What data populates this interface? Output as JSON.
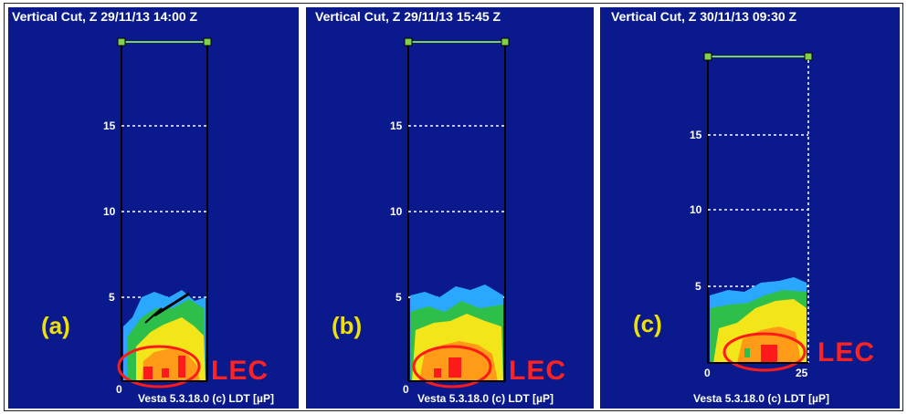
{
  "panels": [
    {
      "title": "Vertical Cut, Z  29/11/13 14:00 Z",
      "label": "(a)",
      "lec": "LEC",
      "footer": "Vesta 5.3.18.0 (c) LDT [µP]",
      "yticks": [
        "15",
        "10",
        "5"
      ],
      "xticks": [
        "0"
      ]
    },
    {
      "title": "Vertical Cut, Z  29/11/13 15:45 Z",
      "label": "(b)",
      "lec": "LEC",
      "footer": "Vesta 5.3.18.0 (c) LDT [µP]",
      "yticks": [
        "15",
        "10",
        "5"
      ],
      "xticks": [
        "0"
      ]
    },
    {
      "title": "Vertical Cut, Z  30/11/13 09:30 Z",
      "label": "(c)",
      "lec": "LEC",
      "footer": "Vesta 5.3.18.0 (c) LDT [µP]",
      "yticks": [
        "15",
        "10",
        "5"
      ],
      "xticks": [
        "0",
        "25"
      ]
    }
  ],
  "colors": {
    "background": "#0a1a8c",
    "frame_line": "#000000",
    "grid": "#ffffff",
    "top_line": "#7fd14a",
    "label": "#f1e100",
    "lec": "#ff2222",
    "reflectivity_low": "#2aa8ff",
    "reflectivity_mid": "#2dbf4a",
    "reflectivity_high": "#f2e51a",
    "reflectivity_higher": "#ff9b16",
    "reflectivity_max": "#ff1a1a"
  }
}
